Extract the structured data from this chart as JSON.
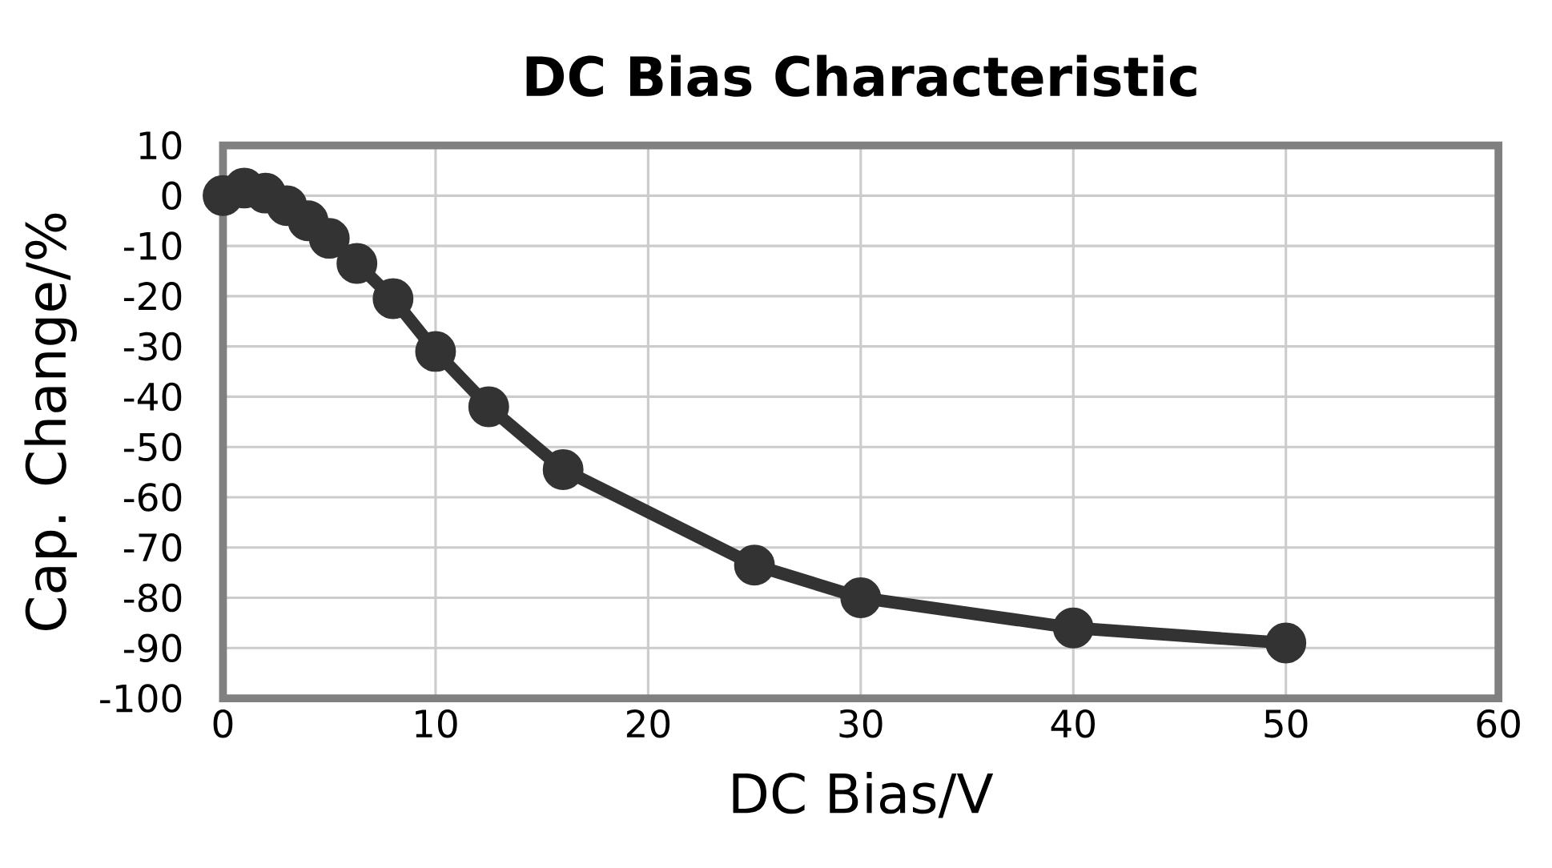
{
  "chart_data": {
    "type": "line",
    "title": "DC Bias Characteristic",
    "xlabel": "DC Bias/V",
    "ylabel": "Cap. Change/%",
    "series": [
      {
        "color": "#333333",
        "x": [
          0,
          1,
          2,
          3,
          4,
          5,
          6.3,
          8,
          10,
          12.5,
          16,
          25,
          30,
          40,
          50
        ],
        "values": [
          0,
          1.5,
          0.5,
          -2,
          -5,
          -8.5,
          -13.5,
          -20.5,
          -31,
          -42,
          -54.5,
          -73.5,
          -80,
          -86,
          -89
        ]
      }
    ],
    "xlim": [
      0,
      60
    ],
    "xticks": [
      0,
      10,
      20,
      30,
      40,
      50,
      60
    ],
    "ylim": [
      -100,
      10
    ],
    "yticks": [
      10,
      0,
      -10,
      -20,
      -30,
      -40,
      -50,
      -60,
      -70,
      -80,
      -90,
      -100
    ],
    "grid": true,
    "marker": "circle",
    "line_style": "solid"
  }
}
